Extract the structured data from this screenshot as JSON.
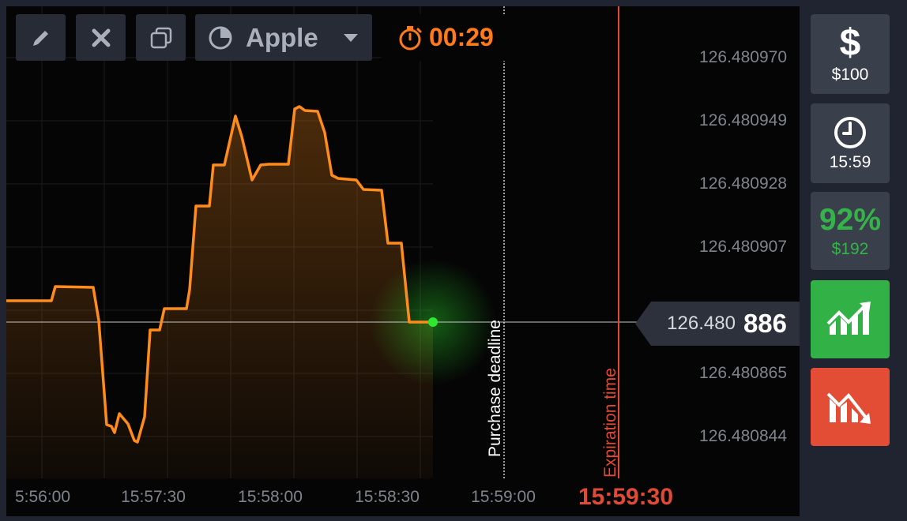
{
  "toolbar": {
    "asset_name": "Apple",
    "timer": "00:29"
  },
  "price_axis": {
    "labels": [
      "126.480970",
      "126.480949",
      "126.480928",
      "126.480907",
      "126.480865",
      "126.480844"
    ]
  },
  "current_price": {
    "main": "126.480",
    "tail": "886"
  },
  "time_axis": {
    "labels": [
      "5:56:00",
      "15:57:30",
      "15:58:00",
      "15:58:30",
      "15:59:00"
    ],
    "expiry": "15:59:30"
  },
  "markers": {
    "purchase_deadline": "Purchase deadline",
    "expiration_time": "Expiration time"
  },
  "sidebar": {
    "amount_symbol": "$",
    "amount": "$100",
    "time": "15:59",
    "payout_percent": "92%",
    "payout_amount": "$192"
  },
  "colors": {
    "line": "#ff8c1a",
    "call": "#31b146",
    "put": "#e44d35",
    "expiry": "#e04a35",
    "profit": "#35b34a"
  }
}
